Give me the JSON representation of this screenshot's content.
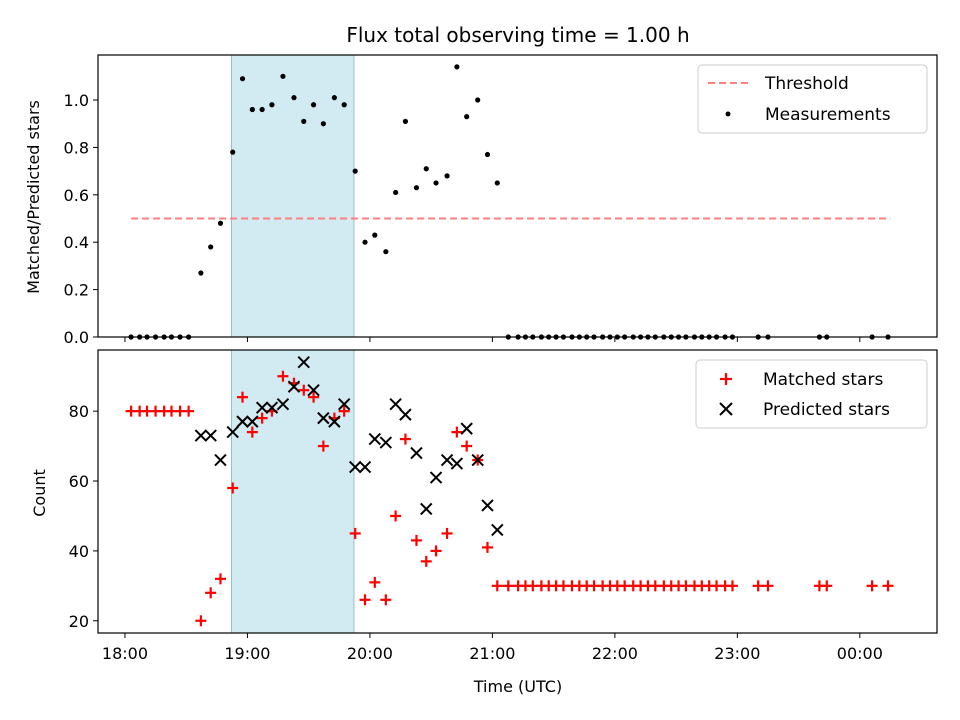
{
  "chart_data": [
    {
      "type": "scatter",
      "title": "Flux total observing time = 1.00 h",
      "xlabel": "",
      "ylabel": "Matched/Predicted stars",
      "ylim": [
        0,
        1.19
      ],
      "yticks": [
        0.0,
        0.2,
        0.4,
        0.6,
        0.8,
        1.0
      ],
      "ytick_labels": [
        "0.0",
        "0.2",
        "0.4",
        "0.6",
        "0.8",
        "1.0"
      ],
      "xlim_hours": [
        17.78,
        24.63
      ],
      "shaded_span_hours": [
        18.87,
        19.87
      ],
      "shade_color": "#add8e6",
      "legend_position": "top-right",
      "threshold": {
        "name": "Threshold",
        "value": 0.5,
        "x_range_hours": [
          18.05,
          24.25
        ],
        "color": "#ff7f7f",
        "style": "dashed"
      },
      "series": [
        {
          "name": "Measurements",
          "color": "#000000",
          "points": [
            [
              18.05,
              0
            ],
            [
              18.12,
              0
            ],
            [
              18.18,
              0
            ],
            [
              18.25,
              0
            ],
            [
              18.32,
              0
            ],
            [
              18.38,
              0
            ],
            [
              18.45,
              0
            ],
            [
              18.52,
              0
            ],
            [
              18.62,
              0.27
            ],
            [
              18.7,
              0.38
            ],
            [
              18.78,
              0.48
            ],
            [
              18.88,
              0.78
            ],
            [
              18.96,
              1.09
            ],
            [
              19.04,
              0.96
            ],
            [
              19.12,
              0.96
            ],
            [
              19.2,
              0.98
            ],
            [
              19.29,
              1.1
            ],
            [
              19.38,
              1.01
            ],
            [
              19.46,
              0.91
            ],
            [
              19.54,
              0.98
            ],
            [
              19.62,
              0.9
            ],
            [
              19.71,
              1.01
            ],
            [
              19.79,
              0.98
            ],
            [
              19.88,
              0.7
            ],
            [
              19.96,
              0.4
            ],
            [
              20.04,
              0.43
            ],
            [
              20.13,
              0.36
            ],
            [
              20.21,
              0.61
            ],
            [
              20.29,
              0.91
            ],
            [
              20.38,
              0.63
            ],
            [
              20.46,
              0.71
            ],
            [
              20.54,
              0.65
            ],
            [
              20.63,
              0.68
            ],
            [
              20.71,
              1.14
            ],
            [
              20.79,
              0.93
            ],
            [
              20.88,
              1.0
            ],
            [
              20.96,
              0.77
            ],
            [
              21.04,
              0.65
            ],
            [
              21.13,
              0
            ],
            [
              21.21,
              0
            ],
            [
              21.27,
              0
            ],
            [
              21.33,
              0
            ],
            [
              21.4,
              0
            ],
            [
              21.46,
              0
            ],
            [
              21.52,
              0
            ],
            [
              21.58,
              0
            ],
            [
              21.65,
              0
            ],
            [
              21.71,
              0
            ],
            [
              21.77,
              0
            ],
            [
              21.83,
              0
            ],
            [
              21.9,
              0
            ],
            [
              21.96,
              0
            ],
            [
              22.02,
              0
            ],
            [
              22.08,
              0
            ],
            [
              22.15,
              0
            ],
            [
              22.21,
              0
            ],
            [
              22.27,
              0
            ],
            [
              22.33,
              0
            ],
            [
              22.4,
              0
            ],
            [
              22.46,
              0
            ],
            [
              22.52,
              0
            ],
            [
              22.58,
              0
            ],
            [
              22.65,
              0
            ],
            [
              22.71,
              0
            ],
            [
              22.77,
              0
            ],
            [
              22.83,
              0
            ],
            [
              22.9,
              0
            ],
            [
              22.96,
              0
            ],
            [
              23.17,
              0
            ],
            [
              23.25,
              0
            ],
            [
              23.67,
              0
            ],
            [
              23.73,
              0
            ],
            [
              24.1,
              0
            ],
            [
              24.23,
              0
            ]
          ]
        }
      ]
    },
    {
      "type": "scatter",
      "title": "",
      "xlabel": "Time (UTC)",
      "ylabel": "Count",
      "ylim": [
        16.5,
        97.5
      ],
      "yticks": [
        20,
        40,
        60,
        80
      ],
      "ytick_labels": [
        "20",
        "40",
        "60",
        "80"
      ],
      "xlim_hours": [
        17.78,
        24.63
      ],
      "xticks_hours": [
        18,
        19,
        20,
        21,
        22,
        23,
        24
      ],
      "xtick_labels": [
        "18:00",
        "19:00",
        "20:00",
        "21:00",
        "22:00",
        "23:00",
        "00:00"
      ],
      "shaded_span_hours": [
        18.87,
        19.87
      ],
      "shade_color": "#add8e6",
      "legend_position": "top-right",
      "series": [
        {
          "name": "Matched stars",
          "marker": "plus",
          "color": "#ff0000",
          "points": [
            [
              18.05,
              80
            ],
            [
              18.12,
              80
            ],
            [
              18.18,
              80
            ],
            [
              18.25,
              80
            ],
            [
              18.32,
              80
            ],
            [
              18.38,
              80
            ],
            [
              18.45,
              80
            ],
            [
              18.52,
              80
            ],
            [
              18.62,
              20
            ],
            [
              18.7,
              28
            ],
            [
              18.78,
              32
            ],
            [
              18.88,
              58
            ],
            [
              18.96,
              84
            ],
            [
              19.04,
              74
            ],
            [
              19.12,
              78
            ],
            [
              19.2,
              80
            ],
            [
              19.29,
              90
            ],
            [
              19.38,
              88
            ],
            [
              19.46,
              86
            ],
            [
              19.54,
              84
            ],
            [
              19.62,
              70
            ],
            [
              19.71,
              78
            ],
            [
              19.79,
              80
            ],
            [
              19.88,
              45
            ],
            [
              19.96,
              26
            ],
            [
              20.04,
              31
            ],
            [
              20.13,
              26
            ],
            [
              20.21,
              50
            ],
            [
              20.29,
              72
            ],
            [
              20.38,
              43
            ],
            [
              20.46,
              37
            ],
            [
              20.54,
              40
            ],
            [
              20.63,
              45
            ],
            [
              20.71,
              74
            ],
            [
              20.79,
              70
            ],
            [
              20.88,
              66
            ],
            [
              20.96,
              41
            ],
            [
              21.04,
              30
            ],
            [
              21.13,
              30
            ],
            [
              21.21,
              30
            ],
            [
              21.27,
              30
            ],
            [
              21.33,
              30
            ],
            [
              21.4,
              30
            ],
            [
              21.46,
              30
            ],
            [
              21.52,
              30
            ],
            [
              21.58,
              30
            ],
            [
              21.65,
              30
            ],
            [
              21.71,
              30
            ],
            [
              21.77,
              30
            ],
            [
              21.83,
              30
            ],
            [
              21.9,
              30
            ],
            [
              21.96,
              30
            ],
            [
              22.02,
              30
            ],
            [
              22.08,
              30
            ],
            [
              22.15,
              30
            ],
            [
              22.21,
              30
            ],
            [
              22.27,
              30
            ],
            [
              22.33,
              30
            ],
            [
              22.4,
              30
            ],
            [
              22.46,
              30
            ],
            [
              22.52,
              30
            ],
            [
              22.58,
              30
            ],
            [
              22.65,
              30
            ],
            [
              22.71,
              30
            ],
            [
              22.77,
              30
            ],
            [
              22.83,
              30
            ],
            [
              22.9,
              30
            ],
            [
              22.96,
              30
            ],
            [
              23.17,
              30
            ],
            [
              23.25,
              30
            ],
            [
              23.67,
              30
            ],
            [
              23.73,
              30
            ],
            [
              24.1,
              30
            ],
            [
              24.23,
              30
            ]
          ]
        },
        {
          "name": "Predicted stars",
          "marker": "x",
          "color": "#000000",
          "points": [
            [
              18.62,
              73
            ],
            [
              18.7,
              73
            ],
            [
              18.78,
              66
            ],
            [
              18.88,
              74
            ],
            [
              18.96,
              77
            ],
            [
              19.04,
              77
            ],
            [
              19.12,
              81
            ],
            [
              19.2,
              81
            ],
            [
              19.29,
              82
            ],
            [
              19.38,
              87
            ],
            [
              19.46,
              94
            ],
            [
              19.54,
              86
            ],
            [
              19.62,
              78
            ],
            [
              19.71,
              77
            ],
            [
              19.79,
              82
            ],
            [
              19.88,
              64
            ],
            [
              19.96,
              64
            ],
            [
              20.04,
              72
            ],
            [
              20.13,
              71
            ],
            [
              20.21,
              82
            ],
            [
              20.29,
              79
            ],
            [
              20.38,
              68
            ],
            [
              20.46,
              52
            ],
            [
              20.54,
              61
            ],
            [
              20.63,
              66
            ],
            [
              20.71,
              65
            ],
            [
              20.79,
              75
            ],
            [
              20.88,
              66
            ],
            [
              20.96,
              53
            ],
            [
              21.04,
              46
            ]
          ]
        }
      ]
    }
  ]
}
